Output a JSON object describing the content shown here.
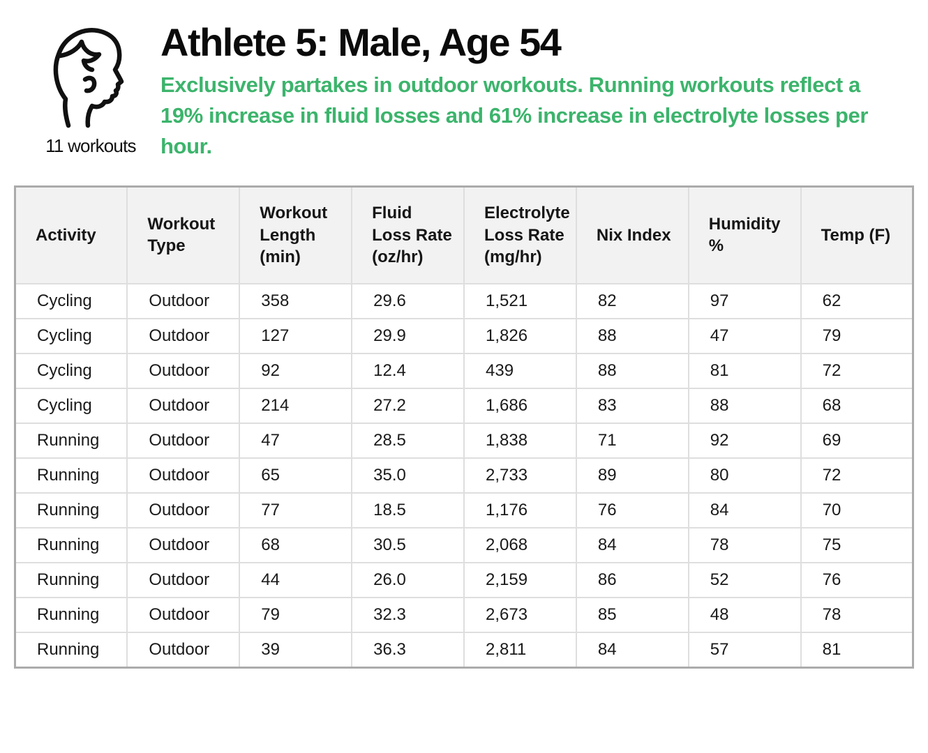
{
  "header": {
    "workouts_label": "11 workouts",
    "title": "Athlete 5: Male, Age 54",
    "subtitle": "Exclusively partakes in outdoor workouts. Running workouts reflect a 19% increase in fluid losses and 61% increase in electrolyte losses per hour.",
    "subtitle_color": "#3cb46c",
    "icon": "male-profile-line-art"
  },
  "table": {
    "columns": [
      "Activity",
      "Workout\nType",
      "Workout\nLength\n(min)",
      "Fluid\nLoss Rate\n(oz/hr)",
      "Electrolyte\nLoss Rate\n(mg/hr)",
      "Nix Index",
      "Humidity\n%",
      "Temp (F)"
    ],
    "rows": [
      [
        "Cycling",
        "Outdoor",
        "358",
        "29.6",
        "1,521",
        "82",
        "97",
        "62"
      ],
      [
        "Cycling",
        "Outdoor",
        "127",
        "29.9",
        "1,826",
        "88",
        "47",
        "79"
      ],
      [
        "Cycling",
        "Outdoor",
        "92",
        "12.4",
        "439",
        "88",
        "81",
        "72"
      ],
      [
        "Cycling",
        "Outdoor",
        "214",
        "27.2",
        "1,686",
        "83",
        "88",
        "68"
      ],
      [
        "Running",
        "Outdoor",
        "47",
        "28.5",
        "1,838",
        "71",
        "92",
        "69"
      ],
      [
        "Running",
        "Outdoor",
        "65",
        "35.0",
        "2,733",
        "89",
        "80",
        "72"
      ],
      [
        "Running",
        "Outdoor",
        "77",
        "18.5",
        "1,176",
        "76",
        "84",
        "70"
      ],
      [
        "Running",
        "Outdoor",
        "68",
        "30.5",
        "2,068",
        "84",
        "78",
        "75"
      ],
      [
        "Running",
        "Outdoor",
        "44",
        "26.0",
        "2,159",
        "86",
        "52",
        "76"
      ],
      [
        "Running",
        "Outdoor",
        "79",
        "32.3",
        "2,673",
        "85",
        "48",
        "78"
      ],
      [
        "Running",
        "Outdoor",
        "39",
        "36.3",
        "2,811",
        "84",
        "57",
        "81"
      ]
    ]
  },
  "colors": {
    "accent_green": "#3cb46c",
    "header_bg": "#f2f2f2",
    "grid_line": "#dedede",
    "outer_border": "#ababab",
    "text": "#111111"
  }
}
